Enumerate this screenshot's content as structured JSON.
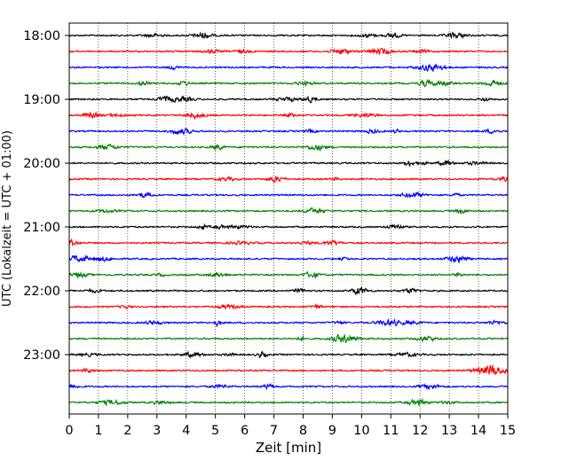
{
  "chart_data": {
    "type": "line",
    "title": "",
    "xlabel": "Zeit  [min]",
    "ylabel": "UTC (Lokalzeit = UTC + 01:00)",
    "xlim": [
      0,
      15
    ],
    "x_ticks": [
      "0",
      "1",
      "2",
      "3",
      "4",
      "5",
      "6",
      "7",
      "8",
      "9",
      "10",
      "11",
      "12",
      "13",
      "14",
      "15"
    ],
    "y_ticks": [
      {
        "label": "18:00",
        "row": 0
      },
      {
        "label": "19:00",
        "row": 4
      },
      {
        "label": "20:00",
        "row": 8
      },
      {
        "label": "21:00",
        "row": 12
      },
      {
        "label": "22:00",
        "row": 16
      },
      {
        "label": "23:00",
        "row": 20
      }
    ],
    "grid": "vertical dotted",
    "trace_colors": [
      "#000000",
      "#ff0000",
      "#0000ff",
      "#008000"
    ],
    "traces": [
      {
        "start": "18:00",
        "color": "#000000"
      },
      {
        "start": "18:15",
        "color": "#ff0000"
      },
      {
        "start": "18:30",
        "color": "#0000ff"
      },
      {
        "start": "18:45",
        "color": "#008000"
      },
      {
        "start": "19:00",
        "color": "#000000"
      },
      {
        "start": "19:15",
        "color": "#ff0000"
      },
      {
        "start": "19:30",
        "color": "#0000ff"
      },
      {
        "start": "19:45",
        "color": "#008000"
      },
      {
        "start": "20:00",
        "color": "#000000"
      },
      {
        "start": "20:15",
        "color": "#ff0000"
      },
      {
        "start": "20:30",
        "color": "#0000ff"
      },
      {
        "start": "20:45",
        "color": "#008000"
      },
      {
        "start": "21:00",
        "color": "#000000"
      },
      {
        "start": "21:15",
        "color": "#ff0000"
      },
      {
        "start": "21:30",
        "color": "#0000ff"
      },
      {
        "start": "21:45",
        "color": "#008000"
      },
      {
        "start": "22:00",
        "color": "#000000"
      },
      {
        "start": "22:15",
        "color": "#ff0000"
      },
      {
        "start": "22:30",
        "color": "#0000ff"
      },
      {
        "start": "22:45",
        "color": "#008000"
      },
      {
        "start": "23:00",
        "color": "#000000"
      },
      {
        "start": "23:15",
        "color": "#ff0000"
      },
      {
        "start": "23:30",
        "color": "#0000ff"
      },
      {
        "start": "23:45",
        "color": "#008000"
      }
    ]
  }
}
